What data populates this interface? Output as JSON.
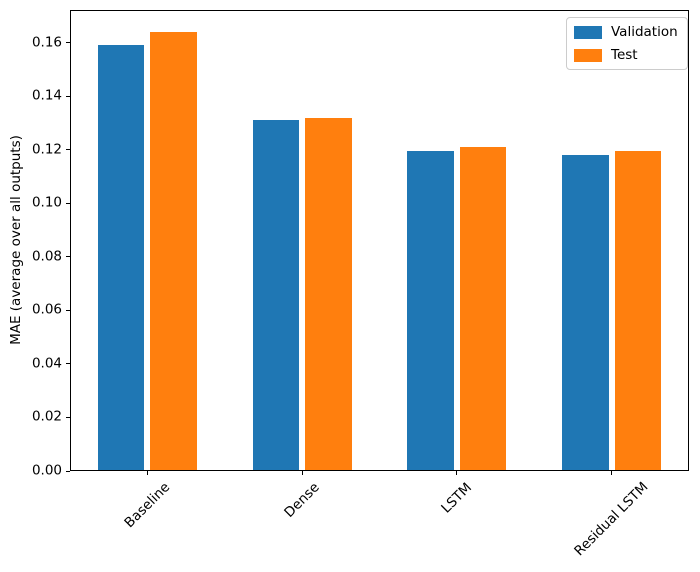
{
  "chart_data": {
    "type": "bar",
    "title": "",
    "xlabel": "",
    "ylabel": "MAE (average over all outputs)",
    "categories": [
      "Baseline",
      "Dense",
      "LSTM",
      "Residual LSTM"
    ],
    "series": [
      {
        "name": "Validation",
        "color": "#1f77b4",
        "values": [
          0.159,
          0.131,
          0.1195,
          0.118
        ]
      },
      {
        "name": "Test",
        "color": "#ff7f0e",
        "values": [
          0.164,
          0.132,
          0.121,
          0.1195
        ]
      }
    ],
    "yticks": [
      0.0,
      0.02,
      0.04,
      0.06,
      0.08,
      0.1,
      0.12,
      0.14,
      0.16
    ],
    "ytick_format_decimals": 2,
    "ylim": [
      0,
      0.1722
    ],
    "bar_width_units": 0.3,
    "bar_offset_units": 0.17,
    "xtick_rotation_deg": 45,
    "grid": false,
    "legend_position": "upper right",
    "background_color": "#ffffff",
    "spine_color": "#000000"
  }
}
